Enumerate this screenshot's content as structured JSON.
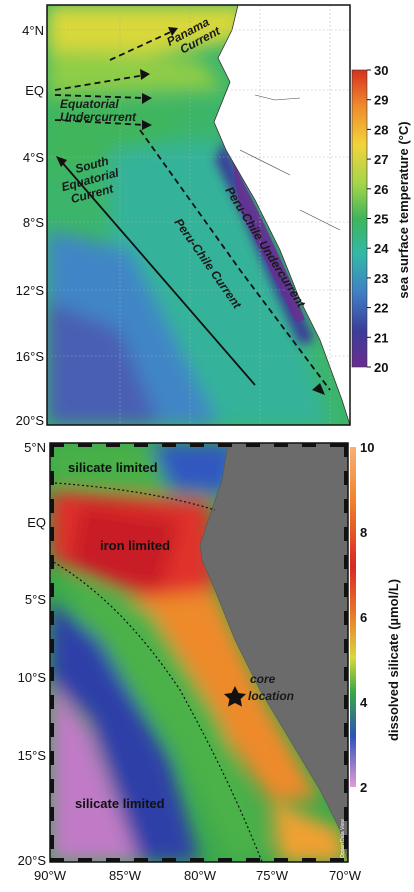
{
  "top_panel": {
    "y_labels": [
      "4°N",
      "EQ",
      "4°S",
      "8°S",
      "12°S",
      "16°S",
      "20°S"
    ],
    "colorbar": {
      "ticks": [
        30,
        29,
        28,
        27,
        26,
        25,
        24,
        23,
        22,
        21,
        20
      ],
      "label": "sea surface temperature (°C)"
    },
    "annotations": {
      "panama": [
        "Panama",
        "Current"
      ],
      "equatorial": [
        "Equatorial",
        "Undercurrent"
      ],
      "south_equatorial": [
        "South",
        "Equatorial",
        "Current"
      ],
      "undercurrent": "Peru-Chile Undercurrent",
      "current": "Peru-Chile Current"
    }
  },
  "bottom_panel": {
    "x_labels": [
      "90°W",
      "85°W",
      "80°W",
      "75°W",
      "70°W"
    ],
    "y_labels": [
      "5°N",
      "EQ",
      "5°S",
      "10°S",
      "15°S",
      "20°S"
    ],
    "colorbar": {
      "ticks": [
        10,
        8,
        6,
        4,
        2
      ],
      "label": "dissolved silicate (µmol/L)"
    },
    "annotations": {
      "silicate_north": "silicate limited",
      "iron": "iron limited",
      "silicate_south": "silicate limited",
      "core": [
        "core",
        "location"
      ],
      "credit": "Ocean Data View"
    }
  }
}
